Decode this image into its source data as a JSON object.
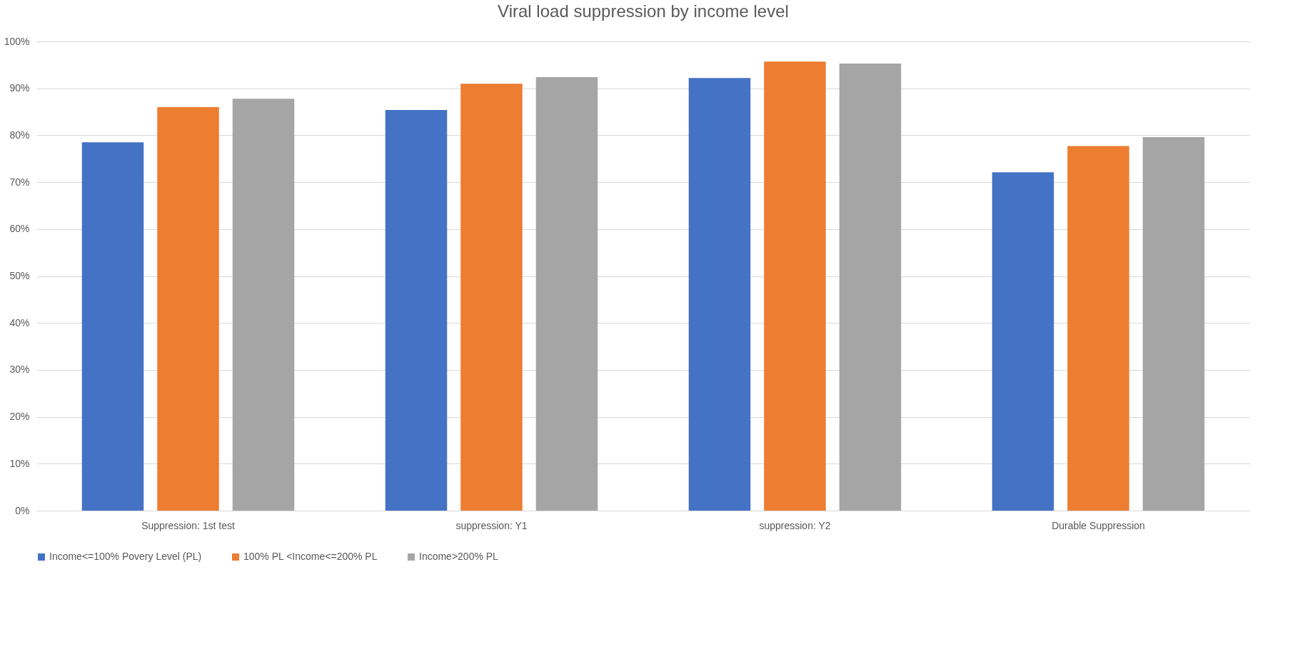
{
  "chart_data": {
    "type": "bar",
    "title": "Viral load suppression by income level",
    "categories": [
      "Suppression: 1st test",
      "suppression: Y1",
      "suppression: Y2",
      "Durable Suppression"
    ],
    "series": [
      {
        "name": "Income<=100% Povery Level (PL)",
        "color": "#4472c4",
        "values": [
          78.5,
          85.4,
          92.2,
          72.1
        ]
      },
      {
        "name": "100% PL <Income<=200% PL",
        "color": "#ed7d31",
        "values": [
          86.0,
          91.0,
          95.7,
          77.7
        ]
      },
      {
        "name": "Income>200% PL",
        "color": "#a5a5a5",
        "values": [
          87.8,
          92.4,
          95.3,
          79.6
        ]
      }
    ],
    "ylim": [
      0,
      100
    ],
    "yticks": [
      {
        "value": 0,
        "label": "0%"
      },
      {
        "value": 10,
        "label": "10%"
      },
      {
        "value": 20,
        "label": "20%"
      },
      {
        "value": 30,
        "label": "30%"
      },
      {
        "value": 40,
        "label": "40%"
      },
      {
        "value": 50,
        "label": "50%"
      },
      {
        "value": 60,
        "label": "60%"
      },
      {
        "value": 70,
        "label": "70%"
      },
      {
        "value": 80,
        "label": "80%"
      },
      {
        "value": 90,
        "label": "90%"
      },
      {
        "value": 100,
        "label": "100%"
      }
    ],
    "grid": "y",
    "legend": "bottom"
  }
}
